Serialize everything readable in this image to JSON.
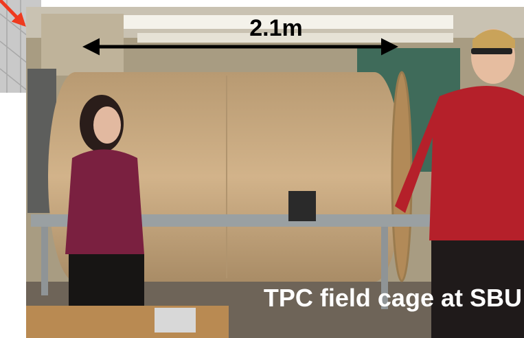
{
  "annotations": {
    "dimension": "2.1m",
    "caption": "TPC field cage at SBU"
  }
}
